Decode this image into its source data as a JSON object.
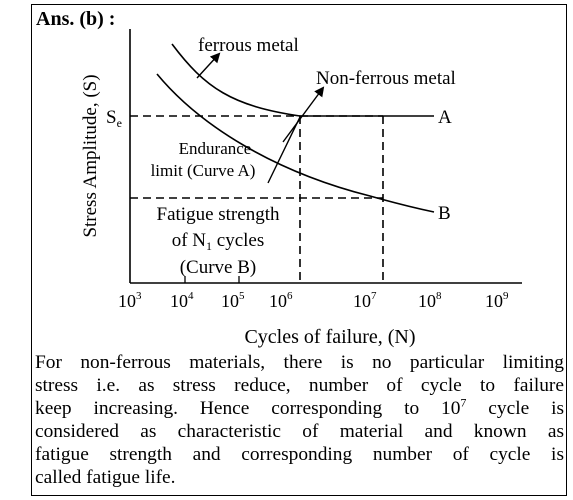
{
  "answer_label": "Ans. (b) :",
  "figure": {
    "y_axis_label": "Stress Amplitude, (S)",
    "x_axis_label": "Cycles of failure, (N)",
    "se_label_main": "S",
    "se_label_sub": "e",
    "x_ticks": [
      {
        "base": "10",
        "exp": "3"
      },
      {
        "base": "10",
        "exp": "4"
      },
      {
        "base": "10",
        "exp": "5"
      },
      {
        "base": "10",
        "exp": "6"
      },
      {
        "base": "10",
        "exp": "7"
      },
      {
        "base": "10",
        "exp": "8"
      },
      {
        "base": "10",
        "exp": "9"
      }
    ],
    "curve_a_label": "A",
    "curve_b_label": "B",
    "ferrous_label": "ferrous metal",
    "nonferrous_label": "Non-ferrous metal",
    "endurance_line1": "Endurance",
    "endurance_line2": "limit (Curve A)",
    "fatigue_line1": "Fatigue strength",
    "fatigue_line2_pre": "of N",
    "fatigue_line2_sub": "1",
    "fatigue_line2_post": " cycles",
    "fatigue_line3": "(Curve B)"
  },
  "paragraph": {
    "line1": "For non-ferrous materials, there is no particular limiting",
    "line2": "stress i.e. as stress reduce, number of cycle to failure",
    "line3_pre": "keep increasing. Hence corresponding to 10",
    "line3_sup": "7",
    "line3_post": " cycle is",
    "line4": "considered as characteristic of material and known as",
    "line5": "fatigue strength and corresponding number of cycle is",
    "line6": "called fatigue life."
  }
}
